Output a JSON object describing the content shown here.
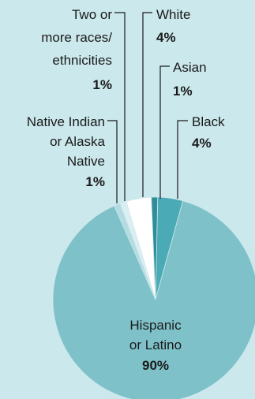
{
  "chart_data": {
    "type": "pie",
    "title": "",
    "slices": [
      {
        "label_lines": [
          "Hispanic",
          "or Latino"
        ],
        "label": "Hispanic or Latino",
        "value": 90,
        "value_label": "90%",
        "color": "#7fc1c9"
      },
      {
        "label_lines": [
          "Native Indian",
          "or Alaska",
          "Native"
        ],
        "label": "Native Indian or Alaska Native",
        "value": 1,
        "value_label": "1%",
        "color": "#b3dbe1"
      },
      {
        "label_lines": [
          "Two or",
          "more races/",
          "ethnicities"
        ],
        "label": "Two or more races/ethnicities",
        "value": 1,
        "value_label": "1%",
        "color": "#dbeff2"
      },
      {
        "label_lines": [
          "White"
        ],
        "label": "White",
        "value": 4,
        "value_label": "4%",
        "color": "#ffffff"
      },
      {
        "label_lines": [
          "Asian"
        ],
        "label": "Asian",
        "value": 1,
        "value_label": "1%",
        "color": "#2f8d99"
      },
      {
        "label_lines": [
          "Black"
        ],
        "label": "Black",
        "value": 4,
        "value_label": "4%",
        "color": "#4aaab6"
      }
    ]
  }
}
